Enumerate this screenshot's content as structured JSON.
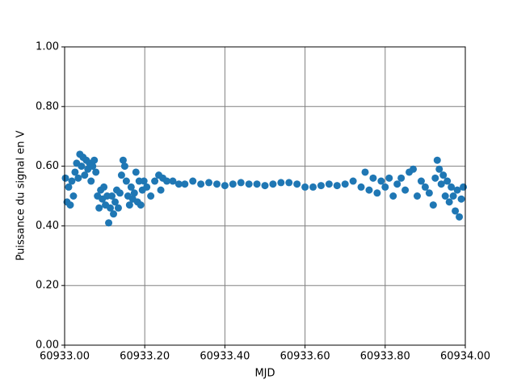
{
  "chart_data": {
    "type": "scatter",
    "x_label": "MJD",
    "y_label": "Puissance du signal en V",
    "color": "#1f77b4",
    "grid": true,
    "xlim": [
      60933.0,
      60934.0
    ],
    "xticks": [
      {
        "value": 60933.0,
        "label": "60933.00"
      },
      {
        "value": 60933.2,
        "label": "60933.20"
      },
      {
        "value": 60933.4,
        "label": "60933.40"
      },
      {
        "value": 60933.6,
        "label": "60933.60"
      },
      {
        "value": 60933.8,
        "label": "60933.80"
      },
      {
        "value": 60934.0,
        "label": "60934.00"
      }
    ],
    "ylim": [
      0,
      1
    ],
    "yticks": [
      {
        "value": 0,
        "label": "0.00"
      },
      {
        "value": 0.2,
        "label": "0.20"
      },
      {
        "value": 0.4,
        "label": "0.40"
      },
      {
        "value": 0.6,
        "label": "0.60"
      },
      {
        "value": 0.8,
        "label": "0.80"
      },
      {
        "value": 1,
        "label": "1.00"
      }
    ],
    "x": [
      60933.002,
      60933.006,
      60933.01,
      60933.014,
      60933.018,
      60933.022,
      60933.026,
      60933.03,
      60933.034,
      60933.038,
      60933.042,
      60933.046,
      60933.05,
      60933.054,
      60933.058,
      60933.062,
      60933.066,
      60933.07,
      60933.074,
      60933.078,
      60933.082,
      60933.086,
      60933.09,
      60933.094,
      60933.098,
      60933.102,
      60933.106,
      60933.11,
      60933.114,
      60933.118,
      60933.122,
      60933.126,
      60933.13,
      60933.134,
      60933.138,
      60933.142,
      60933.146,
      60933.15,
      60933.154,
      60933.158,
      60933.162,
      60933.166,
      60933.17,
      60933.174,
      60933.178,
      60933.182,
      60933.186,
      60933.19,
      60933.194,
      60933.198,
      60933.205,
      60933.215,
      60933.225,
      60933.235,
      60933.24,
      60933.245,
      60933.255,
      60933.27,
      60933.285,
      60933.3,
      60933.32,
      60933.34,
      60933.36,
      60933.38,
      60933.4,
      60933.42,
      60933.44,
      60933.46,
      60933.48,
      60933.5,
      60933.52,
      60933.54,
      60933.56,
      60933.58,
      60933.6,
      60933.62,
      60933.64,
      60933.66,
      60933.68,
      60933.7,
      60933.72,
      60933.74,
      60933.75,
      60933.76,
      60933.77,
      60933.78,
      60933.79,
      60933.8,
      60933.81,
      60933.82,
      60933.83,
      60933.84,
      60933.85,
      60933.86,
      60933.87,
      60933.88,
      60933.89,
      60933.9,
      60933.91,
      60933.92,
      60933.925,
      60933.93,
      60933.935,
      60933.94,
      60933.945,
      60933.95,
      60933.955,
      60933.96,
      60933.965,
      60933.97,
      60933.975,
      60933.98,
      60933.985,
      60933.99,
      60933.995
    ],
    "values": [
      0.56,
      0.48,
      0.53,
      0.47,
      0.55,
      0.5,
      0.58,
      0.61,
      0.56,
      0.64,
      0.6,
      0.63,
      0.57,
      0.62,
      0.59,
      0.61,
      0.55,
      0.6,
      0.62,
      0.58,
      0.5,
      0.46,
      0.52,
      0.49,
      0.53,
      0.47,
      0.5,
      0.41,
      0.46,
      0.5,
      0.44,
      0.48,
      0.52,
      0.46,
      0.51,
      0.57,
      0.62,
      0.6,
      0.55,
      0.5,
      0.47,
      0.53,
      0.49,
      0.51,
      0.58,
      0.48,
      0.55,
      0.47,
      0.52,
      0.55,
      0.53,
      0.5,
      0.55,
      0.57,
      0.52,
      0.56,
      0.55,
      0.55,
      0.54,
      0.54,
      0.55,
      0.54,
      0.545,
      0.54,
      0.535,
      0.54,
      0.545,
      0.54,
      0.54,
      0.535,
      0.54,
      0.545,
      0.545,
      0.54,
      0.53,
      0.53,
      0.535,
      0.54,
      0.535,
      0.54,
      0.55,
      0.53,
      0.58,
      0.52,
      0.56,
      0.51,
      0.55,
      0.53,
      0.56,
      0.5,
      0.54,
      0.56,
      0.52,
      0.58,
      0.59,
      0.5,
      0.55,
      0.53,
      0.51,
      0.47,
      0.56,
      0.62,
      0.59,
      0.54,
      0.57,
      0.5,
      0.55,
      0.48,
      0.53,
      0.5,
      0.45,
      0.52,
      0.43,
      0.49,
      0.53
    ]
  }
}
